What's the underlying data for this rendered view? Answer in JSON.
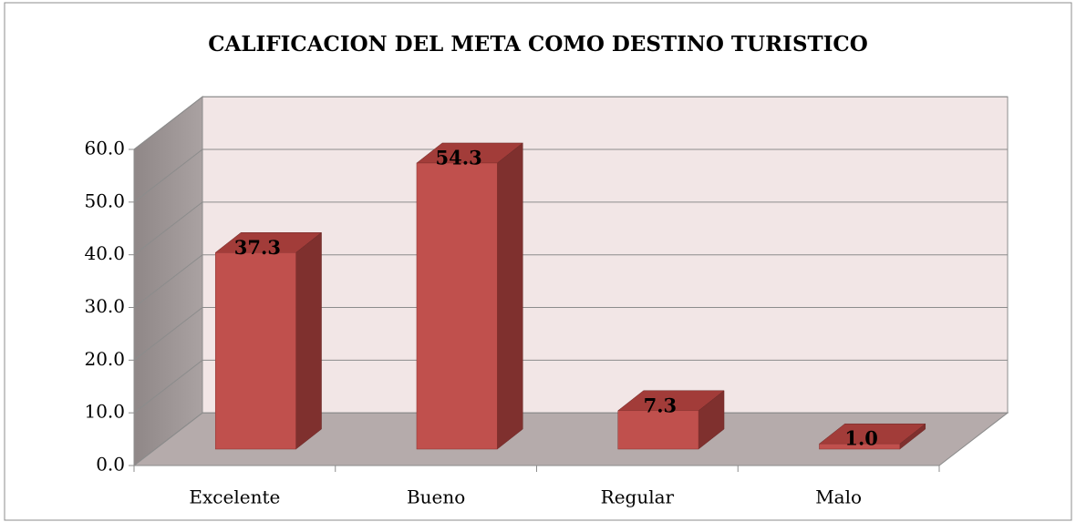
{
  "chart_data": {
    "type": "bar3d",
    "title": "CALIFICACION DEL META COMO DESTINO TURISTICO",
    "categories": [
      "Excelente",
      "Bueno",
      "Regular",
      "Malo"
    ],
    "values": [
      37.3,
      54.3,
      7.3,
      1.0
    ],
    "value_labels": [
      "37.3",
      "54.3",
      "7.3",
      "1.0"
    ],
    "color": "#c0504d",
    "ylim": [
      0,
      60
    ],
    "yticks": [
      {
        "value": 0,
        "label": "0.0"
      },
      {
        "value": 10,
        "label": "10.0"
      },
      {
        "value": 20,
        "label": "20.0"
      },
      {
        "value": 30,
        "label": "30.0"
      },
      {
        "value": 40,
        "label": "40.0"
      },
      {
        "value": 50,
        "label": "50.0"
      },
      {
        "value": 60,
        "label": "60.0"
      }
    ],
    "grid": true
  }
}
